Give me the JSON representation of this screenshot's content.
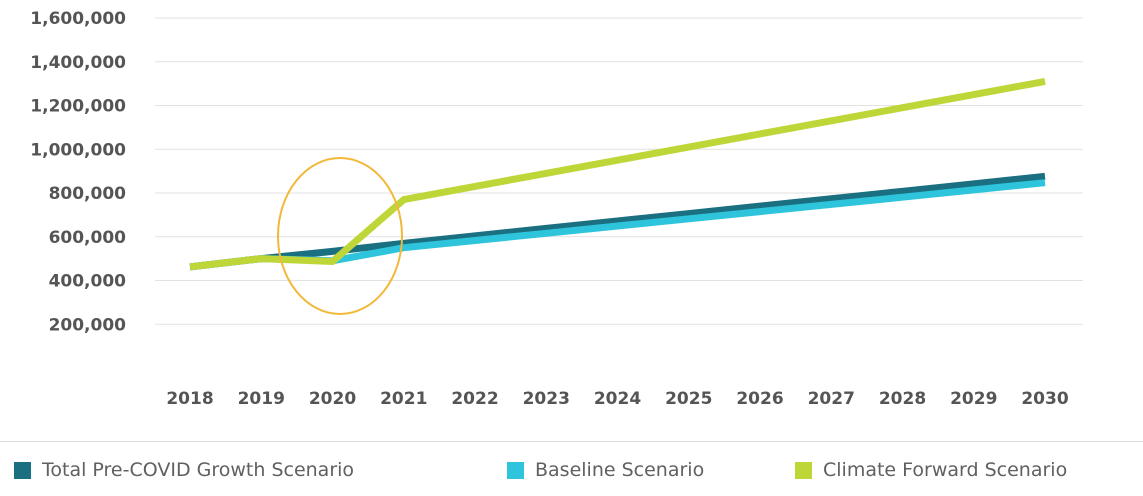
{
  "chart_data": {
    "type": "line",
    "categories": [
      "2018",
      "2019",
      "2020",
      "2021",
      "2022",
      "2023",
      "2024",
      "2025",
      "2026",
      "2027",
      "2028",
      "2029",
      "2030"
    ],
    "ylim": [
      0,
      1600000
    ],
    "yticks": [
      "200,000",
      "400,000",
      "600,000",
      "800,000",
      "1,000,000",
      "1,200,000",
      "1,400,000",
      "1,600,000"
    ],
    "ytick_values": [
      200000,
      400000,
      600000,
      800000,
      1000000,
      1200000,
      1400000,
      1600000
    ],
    "grid": true,
    "legend_position": "bottom",
    "annotation": "orange ellipse highlighting 2020",
    "series": [
      {
        "name": "Total Pre-COVID Growth Scenario",
        "color": "#1a7080",
        "values": [
          462000,
          500000,
          533000,
          570000,
          604000,
          638000,
          672000,
          706000,
          740000,
          774000,
          808000,
          842000,
          876000
        ]
      },
      {
        "name": "Baseline Scenario",
        "color": "#2ec4dc",
        "values": [
          462000,
          500000,
          490000,
          550000,
          583000,
          616000,
          649000,
          682000,
          715000,
          748000,
          781000,
          814000,
          847000
        ]
      },
      {
        "name": "Climate Forward Scenario",
        "color": "#bfd638",
        "values": [
          462000,
          500000,
          487000,
          770000,
          830000,
          890000,
          950000,
          1010000,
          1070000,
          1130000,
          1190000,
          1250000,
          1310000
        ]
      }
    ]
  }
}
